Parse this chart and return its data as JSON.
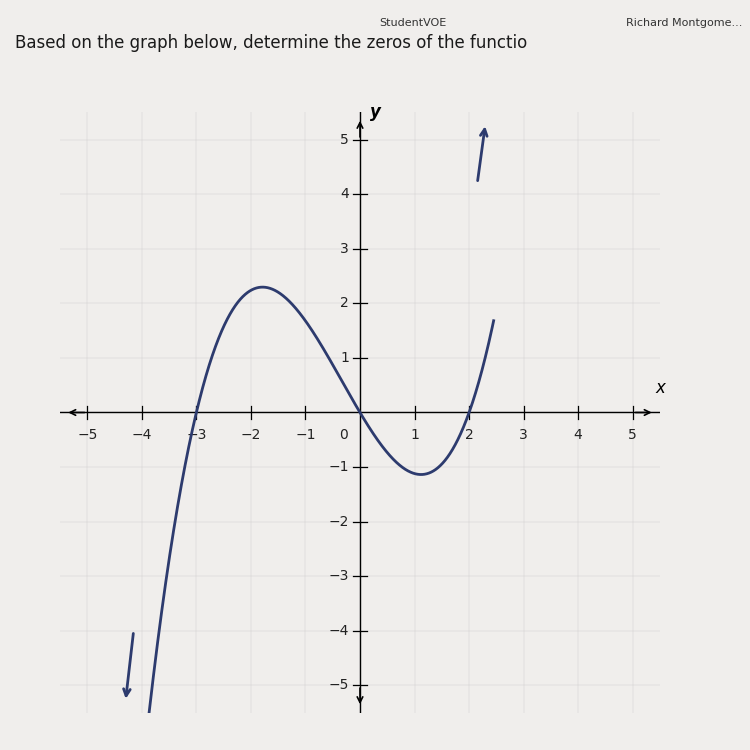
{
  "title": "Based on the graph below, determine the zeros of the functio",
  "title_fontsize": 12,
  "background_color": "#f0eeec",
  "page_color": "#f0eeec",
  "plot_bg_color": "#edeae6",
  "curve_color": "#2d3b6e",
  "curve_linewidth": 2.0,
  "xlim": [
    -5.5,
    5.5
  ],
  "ylim": [
    -5.5,
    5.5
  ],
  "xticks": [
    -5,
    -4,
    -3,
    -2,
    -1,
    1,
    2,
    3,
    4,
    5
  ],
  "yticks": [
    -5,
    -4,
    -3,
    -2,
    -1,
    1,
    2,
    3,
    4,
    5
  ],
  "xlabel": "x",
  "ylabel": "y",
  "axis_label_fontsize": 12,
  "tick_fontsize": 10,
  "browser_bar_color": "#d8d3ce",
  "browser_bar_height": 0.06,
  "scale_factor": 0.28,
  "x_start": -5.0,
  "x_end": 2.45
}
